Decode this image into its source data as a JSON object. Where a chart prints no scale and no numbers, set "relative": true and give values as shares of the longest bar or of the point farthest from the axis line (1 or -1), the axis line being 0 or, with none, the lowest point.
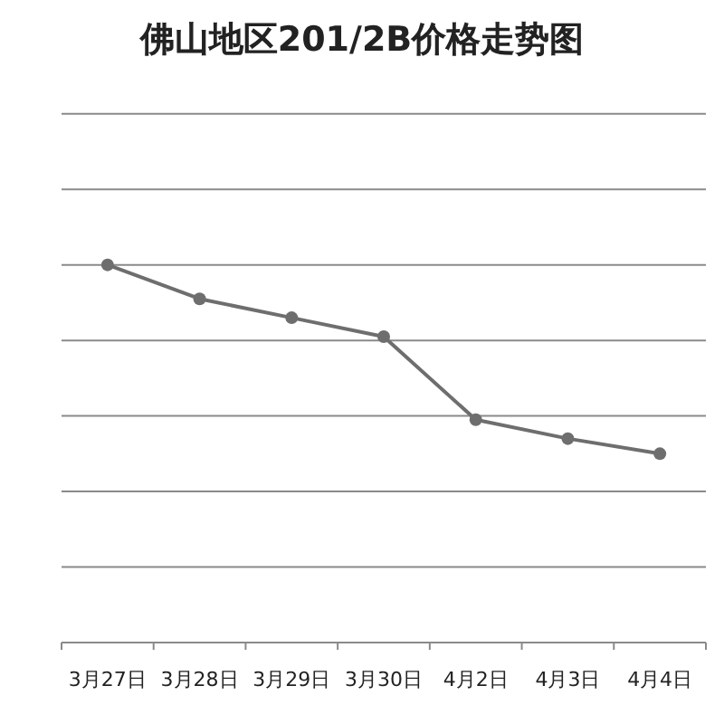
{
  "chart_data": {
    "type": "line",
    "title": "佛山地区201/2B价格走势图",
    "categories": [
      "3月27日",
      "3月28日",
      "3月29日",
      "3月30日",
      "4月2日",
      "4月3日",
      "4月4日"
    ],
    "relative": true,
    "grid": "y",
    "marker": "circle",
    "line_style": "solid",
    "series": [
      {
        "color": "#6e6e6e",
        "values": [
          1,
          0.91,
          0.86,
          0.81,
          0.59,
          0.54,
          0.5
        ]
      }
    ]
  }
}
